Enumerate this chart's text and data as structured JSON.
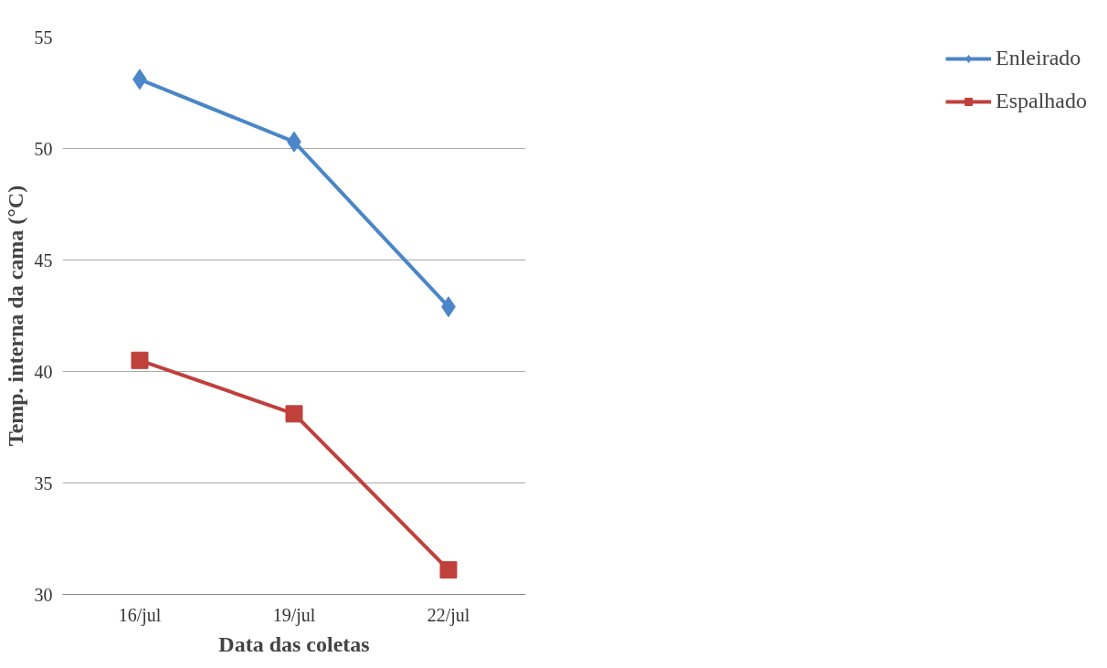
{
  "chart_data": {
    "type": "line",
    "xlabel": "Data das coletas",
    "ylabel": "Temp. interna da cama (°C)",
    "categories": [
      "16/jul",
      "19/jul",
      "22/jul"
    ],
    "series": [
      {
        "name": "Enleirado",
        "color": "#4a86c8",
        "marker": "diamond",
        "values": [
          53.1,
          50.3,
          42.9
        ]
      },
      {
        "name": "Espalhado",
        "color": "#c0403c",
        "marker": "square",
        "values": [
          40.5,
          38.1,
          31.1
        ]
      }
    ],
    "ylim": [
      30,
      55
    ],
    "yticks": [
      30,
      35,
      40,
      45,
      50,
      55
    ],
    "grid": "y",
    "legend": "right"
  }
}
